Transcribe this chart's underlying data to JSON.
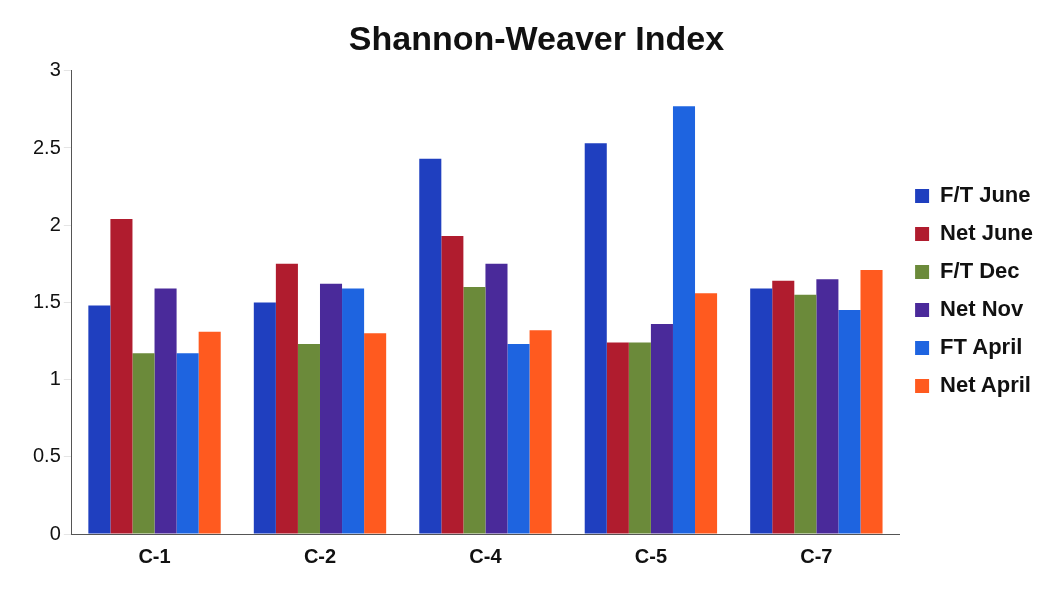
{
  "chart_data": {
    "type": "bar",
    "title": "Shannon-Weaver Index",
    "categories": [
      "C-1",
      "C-2",
      "C-4",
      "C-5",
      "C-7"
    ],
    "series": [
      {
        "name": "F/T June",
        "color": "#1f3fbf",
        "values": [
          1.48,
          1.5,
          2.43,
          2.53,
          1.59
        ]
      },
      {
        "name": "Net June",
        "color": "#b01c2e",
        "values": [
          2.04,
          1.75,
          1.93,
          1.24,
          1.64
        ]
      },
      {
        "name": "F/T Dec",
        "color": "#6b8a3a",
        "values": [
          1.17,
          1.23,
          1.6,
          1.24,
          1.55
        ]
      },
      {
        "name": "Net Nov",
        "color": "#4a2a9a",
        "values": [
          1.59,
          1.62,
          1.75,
          1.36,
          1.65
        ]
      },
      {
        "name": "FT April",
        "color": "#1e64e0",
        "values": [
          1.17,
          1.59,
          1.23,
          2.77,
          1.45
        ]
      },
      {
        "name": "Net April",
        "color": "#ff5a1f",
        "values": [
          1.31,
          1.3,
          1.32,
          1.56,
          1.71
        ]
      }
    ],
    "ylim": [
      0,
      3
    ],
    "yticks": [
      0,
      0.5,
      1,
      1.5,
      2,
      2.5,
      3
    ],
    "grid": false,
    "legend": "right"
  }
}
